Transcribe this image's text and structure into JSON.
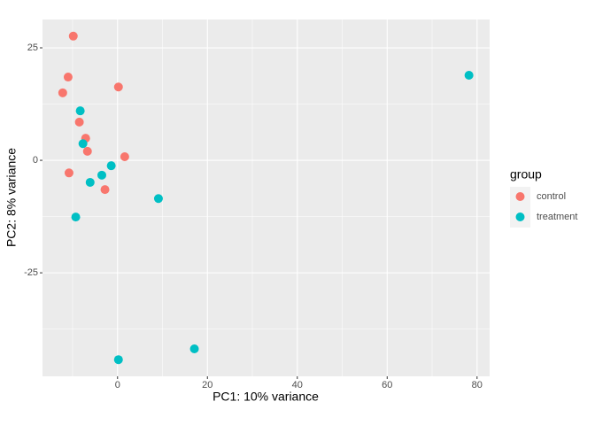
{
  "chart_data": {
    "type": "scatter",
    "xlabel": "PC1: 10% variance",
    "ylabel": "PC2: 8% variance",
    "legend_title": "group",
    "legend": "right",
    "xlim": [
      -16.7,
      82.8
    ],
    "ylim": [
      -48.0,
      31.3
    ],
    "xticks": [
      0,
      20,
      40,
      60,
      80
    ],
    "yticks": [
      -25,
      0,
      25
    ],
    "xminor": [
      -10,
      10,
      30,
      50,
      70
    ],
    "yminor": [
      -37.5,
      -12.5,
      12.5
    ],
    "grid": true,
    "series": [
      {
        "name": "control",
        "color": "#F8766D",
        "x": [
          -9.85,
          -11.0,
          -12.2,
          0.2,
          -8.5,
          -7.1,
          -6.7,
          1.6,
          -10.8,
          -2.8
        ],
        "values": [
          27.6,
          18.5,
          15.0,
          16.3,
          8.5,
          4.9,
          2.0,
          0.8,
          -2.8,
          -6.5
        ]
      },
      {
        "name": "treatment",
        "color": "#00BFC4",
        "x": [
          -8.3,
          -7.7,
          -1.4,
          -3.5,
          -6.1,
          -9.3,
          9.1,
          78.2,
          17.1,
          0.2
        ],
        "values": [
          11.0,
          3.7,
          -1.2,
          -3.3,
          -4.9,
          -12.6,
          -8.5,
          18.9,
          -41.9,
          -44.3
        ]
      }
    ]
  }
}
